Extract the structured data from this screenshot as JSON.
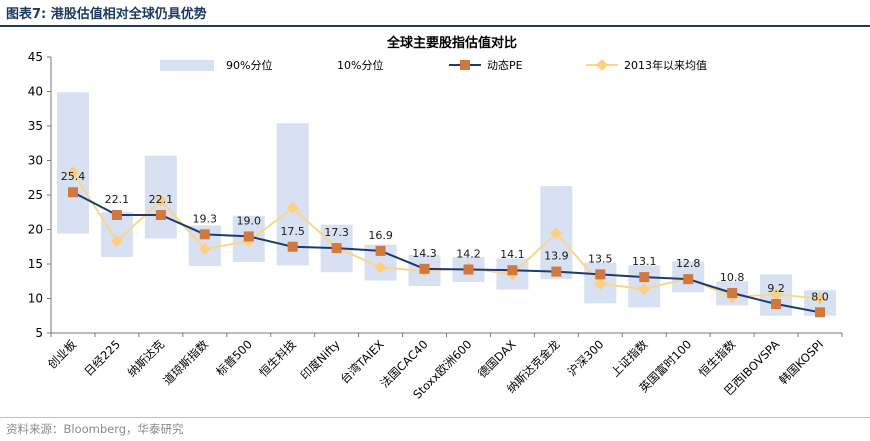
{
  "figure": {
    "heading": "图表7:  港股估值相对全球仍具优势",
    "source": "资料来源：Bloomberg，华泰研究"
  },
  "colors": {
    "heading": "#1f3a60",
    "band": "#d7e1f1",
    "pe_line": "#1f3a72",
    "pe_marker": "#d0783f",
    "avg_line": "#fcd58b",
    "avg_marker": "#fbd080"
  },
  "chart_data": {
    "type": "line",
    "title": "全球主要股指估值对比",
    "categories": [
      "创业板",
      "日经225",
      "纳斯达克",
      "道琼斯指数",
      "标普500",
      "恒生科技",
      "印度Nifty",
      "台湾TAIEX",
      "法国CAC40",
      "Stoxx欧洲600",
      "德国DAX",
      "纳斯达克金龙",
      "沪深300",
      "上证指数",
      "英国富时100",
      "恒生指数",
      "巴西IBOVSPA",
      "韩国KOSPI"
    ],
    "ylim": [
      5,
      45
    ],
    "yticks": [
      5,
      10,
      15,
      20,
      25,
      30,
      35,
      40,
      45
    ],
    "grid": false,
    "legend_position": "top",
    "legend": [
      "90%分位",
      "10%分位",
      "动态PE",
      "2013年以来均值"
    ],
    "series": [
      {
        "name": "90%分位",
        "kind": "band-top",
        "values": [
          39.9,
          22.5,
          30.7,
          20.6,
          22.0,
          35.4,
          20.7,
          17.8,
          16.3,
          16.0,
          15.8,
          26.3,
          15.2,
          14.8,
          15.4,
          12.5,
          13.5,
          11.2
        ]
      },
      {
        "name": "10%分位",
        "kind": "band-bottom",
        "values": [
          19.4,
          16.0,
          18.7,
          14.7,
          15.3,
          14.8,
          13.8,
          12.6,
          11.8,
          12.4,
          11.3,
          12.8,
          9.3,
          8.7,
          10.9,
          9.0,
          7.5,
          7.5
        ]
      },
      {
        "name": "动态PE",
        "kind": "line",
        "values": [
          25.4,
          22.1,
          22.1,
          19.3,
          19.0,
          17.5,
          17.3,
          16.9,
          14.3,
          14.2,
          14.1,
          13.9,
          13.5,
          13.1,
          12.8,
          10.8,
          9.2,
          8.0
        ],
        "labels": [
          "25.4",
          "22.1",
          "22.1",
          "19.3",
          "19.0",
          "17.5",
          "17.3",
          "16.9",
          "14.3",
          "14.2",
          "14.1",
          "13.9",
          "13.5",
          "13.1",
          "12.8",
          "10.8",
          "9.2",
          "8.0"
        ]
      },
      {
        "name": "2013年以来均值",
        "kind": "line",
        "values": [
          28.3,
          18.3,
          24.2,
          17.2,
          18.3,
          23.1,
          17.4,
          14.5,
          14.0,
          14.4,
          13.5,
          19.5,
          12.1,
          11.4,
          12.9,
          10.2,
          10.6,
          10.0
        ]
      }
    ]
  }
}
